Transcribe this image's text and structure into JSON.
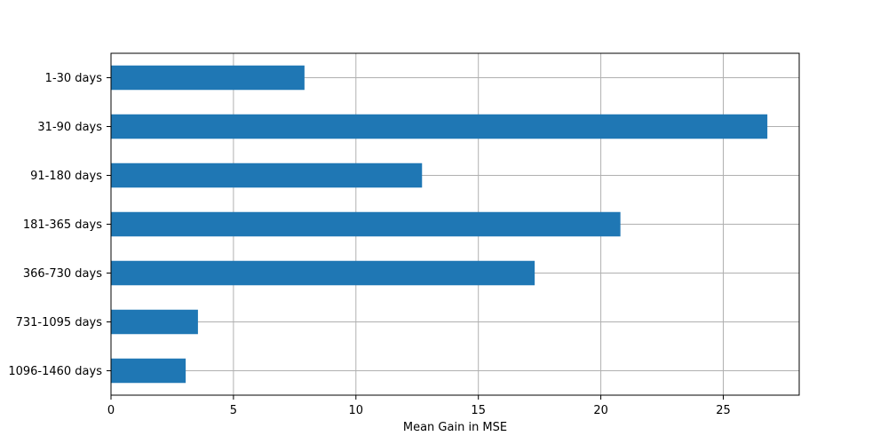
{
  "chart_data": {
    "type": "bar",
    "orientation": "horizontal",
    "categories": [
      "1-30 days",
      "31-90 days",
      "91-180 days",
      "181-365 days",
      "366-730 days",
      "731-1095 days",
      "1096-1460 days"
    ],
    "values": [
      7.9,
      26.8,
      12.7,
      20.8,
      17.3,
      3.55,
      3.05
    ],
    "xlabel": "Mean Gain in MSE",
    "ylabel": "",
    "xlim": [
      0,
      28.1
    ],
    "xticks": [
      0,
      5,
      10,
      15,
      20,
      25
    ],
    "grid": true,
    "bar_color": "#1f77b4"
  }
}
